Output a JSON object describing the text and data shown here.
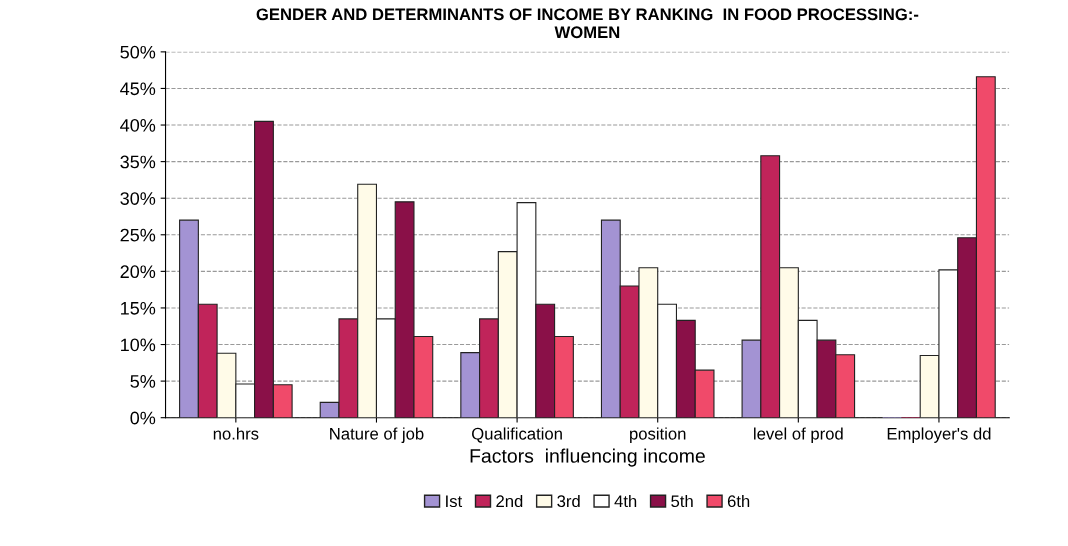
{
  "chart_data": {
    "type": "bar",
    "title": "GENDER AND DETERMINANTS OF INCOME BY RANKING  IN FOOD PROCESSING:-\nWOMEN",
    "xlabel": "Factors  influencing income",
    "categories": [
      "no.hrs",
      "Nature of job",
      "Qualification",
      "position",
      "level of prod",
      "Employer's dd"
    ],
    "series": [
      {
        "name": "Ist",
        "color": "#a393d3",
        "values": [
          27,
          2.1,
          8.9,
          27,
          10.6,
          0
        ]
      },
      {
        "name": "2nd",
        "color": "#c0245a",
        "values": [
          15.5,
          13.5,
          13.5,
          18,
          35.8,
          0
        ]
      },
      {
        "name": "3rd",
        "color": "#fffbe8",
        "values": [
          8.8,
          31.9,
          22.7,
          20.5,
          20.5,
          8.5
        ]
      },
      {
        "name": "4th",
        "color": "#ffffff",
        "values": [
          4.6,
          13.5,
          29.4,
          15.5,
          13.3,
          20.2
        ]
      },
      {
        "name": "5th",
        "color": "#8a1048",
        "values": [
          40.5,
          29.5,
          15.5,
          13.3,
          10.6,
          24.6
        ]
      },
      {
        "name": "6th",
        "color": "#f04a6a",
        "values": [
          4.5,
          11.1,
          11.1,
          6.5,
          8.6,
          46.6
        ]
      }
    ],
    "ylim": [
      0,
      50
    ],
    "yticks": [
      {
        "value": 0,
        "label": "0%"
      },
      {
        "value": 5,
        "label": "5%"
      },
      {
        "value": 10,
        "label": "10%"
      },
      {
        "value": 15,
        "label": "15%"
      },
      {
        "value": 20,
        "label": "20%"
      },
      {
        "value": 25,
        "label": "25%"
      },
      {
        "value": 30,
        "label": "30%"
      },
      {
        "value": 35,
        "label": "35%"
      },
      {
        "value": 40,
        "label": "40%"
      },
      {
        "value": 45,
        "label": "45%"
      },
      {
        "value": 50,
        "label": "50%"
      }
    ],
    "grid": "y",
    "legend": "bottom"
  }
}
